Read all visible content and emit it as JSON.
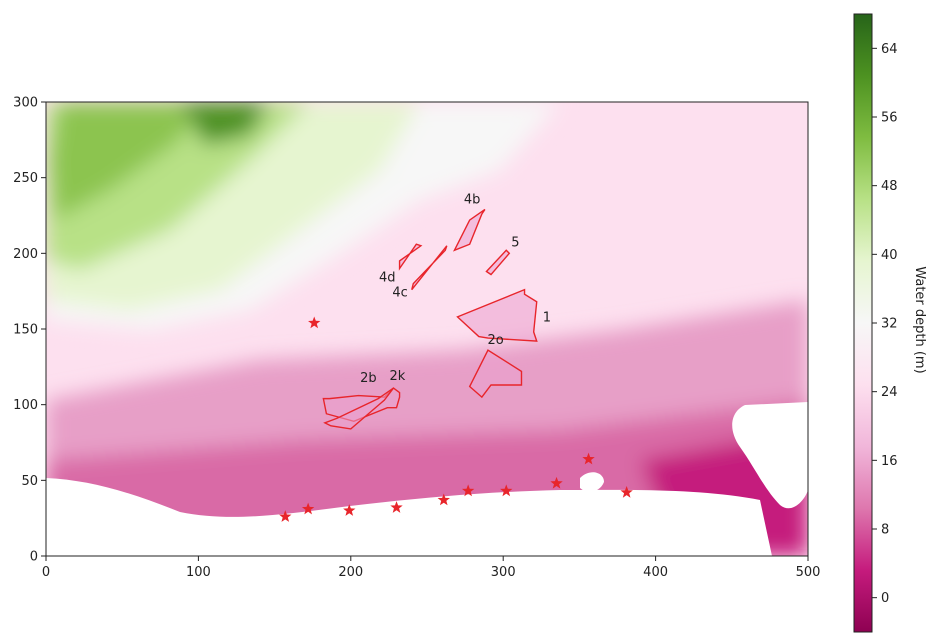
{
  "chart_data": {
    "type": "heatmap",
    "title": "",
    "xlabel": "",
    "ylabel": "",
    "xlim": [
      0,
      500
    ],
    "ylim": [
      0,
      300
    ],
    "x_ticks": [
      0,
      100,
      200,
      300,
      400,
      500
    ],
    "y_ticks": [
      0,
      50,
      100,
      150,
      200,
      250,
      300
    ],
    "grid": false,
    "colorbar": {
      "label": "Water depth (m)",
      "range": [
        -4,
        68
      ],
      "ticks": [
        0,
        8,
        16,
        24,
        32,
        40,
        48,
        56,
        64
      ],
      "colormap": "PiYG",
      "colors": [
        "#8e0152",
        "#c51b7d",
        "#de77ae",
        "#f1b6da",
        "#fde0ef",
        "#f7f7f7",
        "#e6f5d0",
        "#b8e186",
        "#7fbc41",
        "#4d9221",
        "#276419"
      ]
    },
    "polygon_color": "#e8252b",
    "polygons": [
      {
        "label": "1",
        "points": [
          [
            270,
            158
          ],
          [
            314,
            176
          ],
          [
            314,
            173
          ],
          [
            322,
            168
          ],
          [
            320,
            148
          ],
          [
            322,
            142
          ],
          [
            290,
            144
          ],
          [
            284,
            145
          ]
        ]
      },
      {
        "label": "2o",
        "points": [
          [
            278,
            112
          ],
          [
            286,
            105
          ],
          [
            292,
            113
          ],
          [
            312,
            113
          ],
          [
            312,
            122
          ],
          [
            290,
            136
          ]
        ]
      },
      {
        "label": "2b",
        "points": [
          [
            205,
            106
          ],
          [
            222,
            105
          ],
          [
            228,
            111
          ],
          [
            232,
            108
          ],
          [
            232,
            105
          ],
          [
            230,
            98
          ],
          [
            224,
            98
          ],
          [
            202,
            89
          ],
          [
            184,
            94
          ],
          [
            182,
            104
          ],
          [
            186,
            104
          ]
        ]
      },
      {
        "label": "2k",
        "points": [
          [
            187,
            86
          ],
          [
            183,
            88
          ],
          [
            191,
            91
          ],
          [
            218,
            104
          ],
          [
            228,
            111
          ],
          [
            222,
            103
          ],
          [
            200,
            84
          ]
        ]
      },
      {
        "label": "4b",
        "points": [
          [
            288,
            229
          ],
          [
            278,
            222
          ],
          [
            268,
            202
          ],
          [
            278,
            206
          ],
          [
            286,
            226
          ]
        ]
      },
      {
        "label": "4c",
        "points": [
          [
            240,
            176
          ],
          [
            263,
            205
          ],
          [
            262,
            202
          ],
          [
            241,
            180
          ]
        ]
      },
      {
        "label": "4d",
        "points": [
          [
            232,
            190
          ],
          [
            243,
            206
          ],
          [
            246,
            205
          ],
          [
            232,
            195
          ]
        ]
      },
      {
        "label": "5",
        "points": [
          [
            289,
            188
          ],
          [
            302,
            202
          ],
          [
            304,
            200
          ],
          [
            292,
            186
          ]
        ]
      }
    ],
    "stations": [
      [
        176,
        154
      ],
      [
        157,
        26
      ],
      [
        172,
        31
      ],
      [
        199,
        30
      ],
      [
        230,
        32
      ],
      [
        261,
        37
      ],
      [
        277,
        43
      ],
      [
        302,
        43
      ],
      [
        335,
        48
      ],
      [
        356,
        64
      ],
      [
        381,
        42
      ]
    ]
  }
}
